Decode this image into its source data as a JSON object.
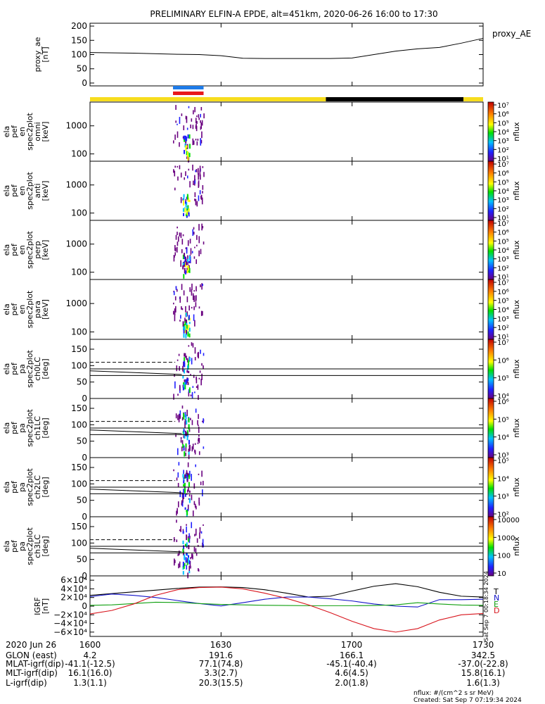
{
  "title": "PRELIMINARY ELFIN-A EPDE, alt=451km, 2020-06-26 16:00 to 17:30",
  "colors": {
    "bar_yellow": "#f7dd1e",
    "bar_black": "#000000",
    "sci_blue": "#1e7be8",
    "sci_red": "#e8191b",
    "grf_T": "#000000",
    "grf_N": "#1313c8",
    "grf_E": "#10a010",
    "grf_D": "#d8141c"
  },
  "chart_data": [
    {
      "id": "proxy_ae",
      "type": "line",
      "ylabel": [
        "proxy_ae",
        "[nT]"
      ],
      "legend": "proxy_AE",
      "ylim": [
        -10,
        210
      ],
      "yticks": [
        "0",
        "50",
        "100",
        "150",
        "200"
      ],
      "ytick_values": [
        0,
        50,
        100,
        150,
        200
      ],
      "x_minutes": [
        0,
        10,
        20,
        25,
        30,
        35,
        40,
        45,
        50,
        55,
        60,
        65,
        70,
        75,
        80,
        85,
        90
      ],
      "values": [
        107,
        105,
        101,
        100,
        96,
        87,
        86,
        86,
        86,
        86,
        88,
        100,
        112,
        120,
        125,
        140,
        157
      ]
    },
    {
      "id": "science_zones",
      "type": "bar",
      "segments": [
        {
          "from": 0,
          "to": 54,
          "color": "bar_yellow"
        },
        {
          "from": 54,
          "to": 85.5,
          "color": "bar_black"
        },
        {
          "from": 85.5,
          "to": 90,
          "color": "bar_yellow"
        }
      ],
      "collection": {
        "from": 19,
        "to": 26
      }
    },
    {
      "id": "pef_en_omni",
      "type": "heatmap",
      "ylabel": [
        "ela",
        "pef",
        "en",
        "spec2plot",
        "omni",
        "[keV]"
      ],
      "yscale": "log",
      "ylim": [
        55,
        7000
      ],
      "yticks": [
        "100",
        "1000"
      ],
      "ytick_values": [
        100,
        1000
      ],
      "colorbar_label": "nflux",
      "colorbar_ticks": [
        "10¹",
        "10²",
        "10³",
        "10⁴",
        "10⁵",
        "10⁶",
        "10⁷"
      ]
    },
    {
      "id": "pef_en_anti",
      "type": "heatmap",
      "ylabel": [
        "ela",
        "pef",
        "en",
        "spec2plot",
        "anti",
        "[keV]"
      ],
      "yscale": "log",
      "ylim": [
        55,
        7000
      ],
      "yticks": [
        "100",
        "1000"
      ],
      "ytick_values": [
        100,
        1000
      ],
      "colorbar_label": "nflux",
      "colorbar_ticks": [
        "10¹",
        "10²",
        "10³",
        "10⁴",
        "10⁵",
        "10⁶",
        "10⁷"
      ]
    },
    {
      "id": "pef_en_perp",
      "type": "heatmap",
      "ylabel": [
        "ela",
        "pef",
        "en",
        "spec2plot",
        "perp",
        "[keV]"
      ],
      "yscale": "log",
      "ylim": [
        55,
        7000
      ],
      "yticks": [
        "100",
        "1000"
      ],
      "ytick_values": [
        100,
        1000
      ],
      "colorbar_label": "nflux",
      "colorbar_ticks": [
        "10¹",
        "10²",
        "10³",
        "10⁴",
        "10⁵",
        "10⁶",
        "10⁷"
      ]
    },
    {
      "id": "pef_en_para",
      "type": "heatmap",
      "ylabel": [
        "ela",
        "pef",
        "en",
        "spec2plot",
        "para",
        "[keV]"
      ],
      "yscale": "log",
      "ylim": [
        55,
        7000
      ],
      "yticks": [
        "100",
        "1000"
      ],
      "ytick_values": [
        100,
        1000
      ],
      "colorbar_label": "nflux",
      "colorbar_ticks": [
        "10¹",
        "10²",
        "10³",
        "10⁴",
        "10⁵",
        "10⁶",
        "10⁷"
      ]
    },
    {
      "id": "pef_pa_ch0LC",
      "type": "heatmap",
      "ylabel": [
        "ela",
        "pef",
        "pa",
        "spec2plot",
        "ch0LC",
        "[deg]"
      ],
      "ylim": [
        0,
        180
      ],
      "yticks": [
        "0",
        "50",
        "100",
        "150"
      ],
      "ytick_values": [
        0,
        50,
        100,
        150
      ],
      "colorbar_label": "nflux",
      "colorbar_ticks": [
        "10⁴",
        "10⁵",
        "10⁶",
        "10⁷"
      ]
    },
    {
      "id": "pef_pa_ch1LC",
      "type": "heatmap",
      "ylabel": [
        "ela",
        "pef",
        "pa",
        "spec2plot",
        "ch1LC",
        "[deg]"
      ],
      "ylim": [
        0,
        180
      ],
      "yticks": [
        "0",
        "50",
        "100",
        "150"
      ],
      "ytick_values": [
        0,
        50,
        100,
        150
      ],
      "colorbar_label": "nflux",
      "colorbar_ticks": [
        "10³",
        "10⁴",
        "10⁵",
        "10⁶"
      ]
    },
    {
      "id": "pef_pa_ch2LC",
      "type": "heatmap",
      "ylabel": [
        "ela",
        "pef",
        "pa",
        "spec2plot",
        "ch2LC",
        "[deg]"
      ],
      "ylim": [
        0,
        180
      ],
      "yticks": [
        "0",
        "50",
        "100",
        "150"
      ],
      "ytick_values": [
        0,
        50,
        100,
        150
      ],
      "colorbar_label": "nflux",
      "colorbar_ticks": [
        "10²",
        "10³",
        "10⁴",
        "10⁵"
      ]
    },
    {
      "id": "pef_pa_ch3LC",
      "type": "heatmap",
      "ylabel": [
        "ela",
        "pef",
        "pa",
        "spec2plot",
        "ch3LC",
        "[deg]"
      ],
      "ylim": [
        0,
        180
      ],
      "yticks": [
        "0",
        "50",
        "100",
        "150"
      ],
      "ytick_values": [
        0,
        50,
        100,
        150
      ],
      "colorbar_label": "nflux",
      "colorbar_ticks": [
        "10",
        "100",
        "1000",
        "10000"
      ]
    },
    {
      "id": "igrf",
      "type": "line",
      "ylabel": [
        "IGRF",
        "[nT]"
      ],
      "ylim": [
        -70000,
        70000
      ],
      "yticks": [
        "6×10⁴",
        "4×10⁴",
        "2×10⁴",
        "0",
        "−2×10⁴",
        "−4×10⁴",
        "−6×10⁴"
      ],
      "ytick_values": [
        60000,
        40000,
        20000,
        0,
        -20000,
        -40000,
        -60000
      ],
      "x_minutes": [
        0,
        5,
        10,
        15,
        20,
        25,
        30,
        35,
        40,
        45,
        50,
        55,
        60,
        65,
        70,
        75,
        80,
        85,
        90
      ],
      "series": [
        {
          "name": "T",
          "color": "grf_T",
          "values": [
            25000,
            29000,
            33000,
            37000,
            41000,
            44000,
            44500,
            43000,
            38000,
            30000,
            21000,
            23000,
            35000,
            46000,
            52000,
            45000,
            32000,
            23000,
            21000
          ]
        },
        {
          "name": "N",
          "color": "grf_N",
          "values": [
            22000,
            28000,
            25000,
            20000,
            13000,
            6000,
            500,
            8000,
            16000,
            21000,
            21000,
            17000,
            12000,
            5000,
            0,
            -2000,
            15000,
            15000,
            16000
          ]
        },
        {
          "name": "E",
          "color": "grf_E",
          "values": [
            2000,
            3000,
            6000,
            9000,
            8500,
            6000,
            4000,
            3000,
            2000,
            1500,
            1000,
            1000,
            1000,
            1500,
            3000,
            8000,
            5000,
            2500,
            2000
          ]
        },
        {
          "name": "D",
          "color": "grf_D",
          "values": [
            -18000,
            -10000,
            5000,
            25000,
            38000,
            43000,
            44000,
            40000,
            30000,
            18000,
            3000,
            -15000,
            -35000,
            -52000,
            -60000,
            -52000,
            -32000,
            -20000,
            -17000
          ]
        }
      ],
      "side_stamp": "Sat Sep  7 00:18:34 2024"
    }
  ],
  "x_axis": {
    "rows": [
      {
        "label": "2020 Jun 26",
        "values": [
          "1600",
          "1630",
          "1700",
          "1730"
        ]
      },
      {
        "label": "GLON (east)",
        "values": [
          "4.2",
          "191.6",
          "166.1",
          "342.5"
        ]
      },
      {
        "label": "MLAT-igrf(dip)",
        "values": [
          "-41.1(-12.5)",
          "77.1(74.8)",
          "-45.1(-40.4)",
          "-37.0(-22.8)"
        ]
      },
      {
        "label": "MLT-igrf(dip)",
        "values": [
          "16.1(16.0)",
          "3.3(2.7)",
          "4.6(4.5)",
          "15.8(16.1)"
        ]
      },
      {
        "label": "L-igrf(dip)",
        "values": [
          "1.3(1.1)",
          "20.3(15.5)",
          "2.0(1.8)",
          "1.6(1.3)"
        ]
      }
    ],
    "tick_minutes": [
      0,
      30,
      60,
      90
    ]
  },
  "footer": {
    "units": "nflux: #/(cm^2 s sr MeV)",
    "created": "Created: Sat Sep  7 07:19:34 2024"
  }
}
